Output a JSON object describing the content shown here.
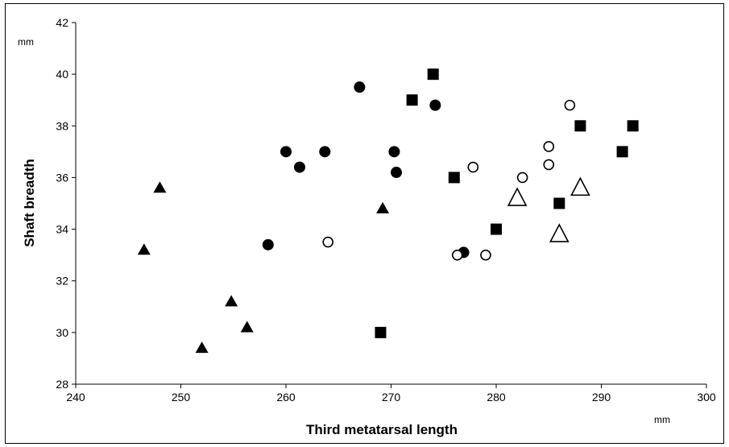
{
  "chart_data": {
    "type": "scatter",
    "xlabel": "Third metatarsal length",
    "ylabel": "Shaft breadth",
    "x_unit": "mm",
    "y_unit": "mm",
    "xlim": [
      240,
      300
    ],
    "ylim": [
      28,
      42
    ],
    "xticks": [
      "240",
      "250",
      "260",
      "270",
      "280",
      "290",
      "300"
    ],
    "yticks": [
      "28",
      "30",
      "32",
      "34",
      "36",
      "38",
      "40",
      "42"
    ],
    "grid": false,
    "legend": "none",
    "series": [
      {
        "marker": "filled-triangle",
        "color": "#000000",
        "points": [
          [
            246.5,
            33.2
          ],
          [
            248,
            35.6
          ],
          [
            252,
            29.4
          ],
          [
            254.8,
            31.2
          ],
          [
            256.3,
            30.2
          ],
          [
            269.2,
            34.8
          ]
        ]
      },
      {
        "marker": "filled-circle",
        "color": "#000000",
        "points": [
          [
            258.3,
            33.4
          ],
          [
            260,
            37
          ],
          [
            261.3,
            36.4
          ],
          [
            263.7,
            37
          ],
          [
            267,
            39.5
          ],
          [
            270.3,
            37
          ],
          [
            270.5,
            36.2
          ],
          [
            274.2,
            38.8
          ],
          [
            276.9,
            33.1
          ]
        ]
      },
      {
        "marker": "filled-square",
        "color": "#000000",
        "points": [
          [
            269,
            30
          ],
          [
            272,
            39
          ],
          [
            274,
            40
          ],
          [
            276,
            36
          ],
          [
            280,
            34
          ],
          [
            286,
            35
          ],
          [
            288,
            38
          ],
          [
            292,
            37
          ],
          [
            293,
            38
          ]
        ]
      },
      {
        "marker": "open-circle",
        "color": "#000000",
        "points": [
          [
            264,
            33.5
          ],
          [
            276.3,
            33
          ],
          [
            277.8,
            36.4
          ],
          [
            279,
            33
          ],
          [
            282.5,
            36
          ],
          [
            285,
            36.5
          ],
          [
            285,
            37.2
          ],
          [
            287,
            38.8
          ]
        ]
      },
      {
        "marker": "open-triangle",
        "color": "#000000",
        "points": [
          [
            282,
            35.2
          ],
          [
            286,
            33.8
          ],
          [
            288,
            35.6
          ]
        ]
      }
    ]
  }
}
